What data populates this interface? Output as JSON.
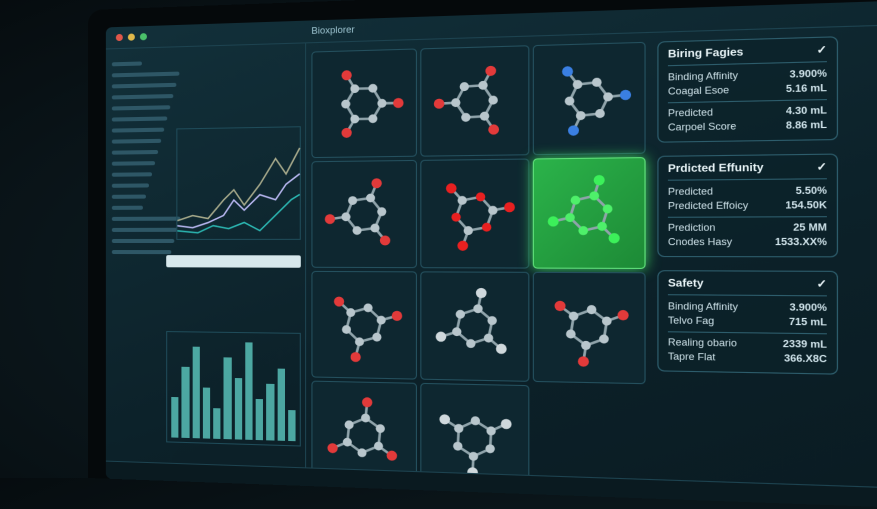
{
  "app": {
    "title": "Bioxplorer"
  },
  "molecules": [
    {
      "accent": "#e23a3a",
      "highlight": false
    },
    {
      "accent": "#e23a3a",
      "highlight": false
    },
    {
      "accent": "#3a7fe2",
      "highlight": false
    },
    {
      "accent": "#e23a3a",
      "highlight": false
    },
    {
      "accent": "#e82020",
      "highlight": false,
      "dense": true
    },
    {
      "accent": "#3cf05a",
      "highlight": true
    },
    {
      "accent": "#e23a3a",
      "highlight": false
    },
    {
      "accent": "#cfd8dc",
      "highlight": false
    },
    {
      "accent": "#e23a3a",
      "highlight": false
    },
    {
      "accent": "#e23a3a",
      "highlight": false
    },
    {
      "accent": "#cfd8dc",
      "highlight": false
    }
  ],
  "chart_bars": [
    0.4,
    0.7,
    0.9,
    0.5,
    0.3,
    0.8,
    0.6,
    0.95,
    0.4,
    0.55,
    0.7,
    0.3
  ],
  "panels": [
    {
      "title": "Biring Fagies",
      "check": "✓",
      "rows": [
        [
          "Binding Affinity",
          "3.900%"
        ],
        [
          "Coagal Esoe",
          "5.16 mL"
        ],
        [
          "Predicted",
          "4.30 mL"
        ],
        [
          "Carpoel Score",
          "8.86 mL"
        ]
      ]
    },
    {
      "title": "Prdicted Effunity",
      "check": "✓",
      "rows": [
        [
          "Predicted",
          "5.50%"
        ],
        [
          "Predicted Effoicy",
          "154.50K"
        ],
        [
          "Prediction",
          "25 MM"
        ],
        [
          "Cnodes Hasy",
          "1533.XX%"
        ]
      ]
    },
    {
      "title": "Safety",
      "check": "✓",
      "rows": [
        [
          "Binding Affinity",
          "3.900%"
        ],
        [
          "Telvo Fag",
          "715 mL"
        ],
        [
          "Realing obario",
          "2339 mL"
        ],
        [
          "Tapre Flat",
          "366.X8C"
        ]
      ]
    }
  ]
}
